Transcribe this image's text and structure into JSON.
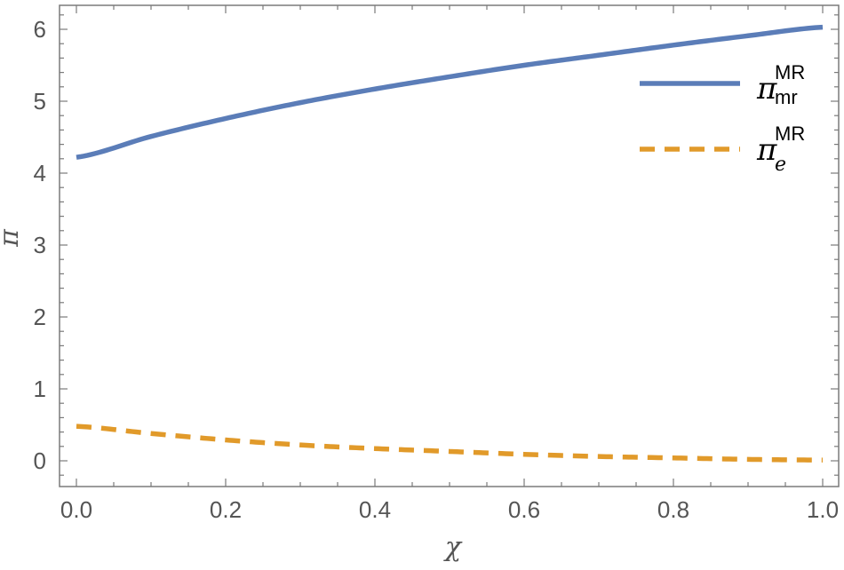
{
  "chart_data": {
    "type": "line",
    "xlabel": "χ",
    "ylabel": "π",
    "xlim": [
      0.0,
      1.0
    ],
    "ylim": [
      -0.35,
      6.35
    ],
    "x_ticks": [
      "0.0",
      "0.2",
      "0.4",
      "0.6",
      "0.8",
      "1.0"
    ],
    "y_ticks": [
      "0",
      "1",
      "2",
      "3",
      "4",
      "5",
      "6"
    ],
    "grid": false,
    "legend_position": "top-right",
    "x": [
      0.0,
      0.1,
      0.2,
      0.3,
      0.4,
      0.5,
      0.6,
      0.7,
      0.8,
      0.9,
      1.0
    ],
    "series": [
      {
        "name": "π_mr^MR",
        "legend_base": "π",
        "legend_sub": "mr",
        "legend_sup": "MR",
        "style": "solid",
        "color": "#5B7DB8",
        "values": [
          4.22,
          4.51,
          4.76,
          4.98,
          5.17,
          5.34,
          5.5,
          5.64,
          5.78,
          5.91,
          6.03
        ]
      },
      {
        "name": "π_e^MR",
        "legend_base": "π",
        "legend_sub": "e",
        "legend_sup": "MR",
        "style": "dashed",
        "color": "#E19A2A",
        "values": [
          0.48,
          0.38,
          0.29,
          0.22,
          0.17,
          0.13,
          0.09,
          0.06,
          0.04,
          0.02,
          0.01
        ]
      }
    ]
  }
}
